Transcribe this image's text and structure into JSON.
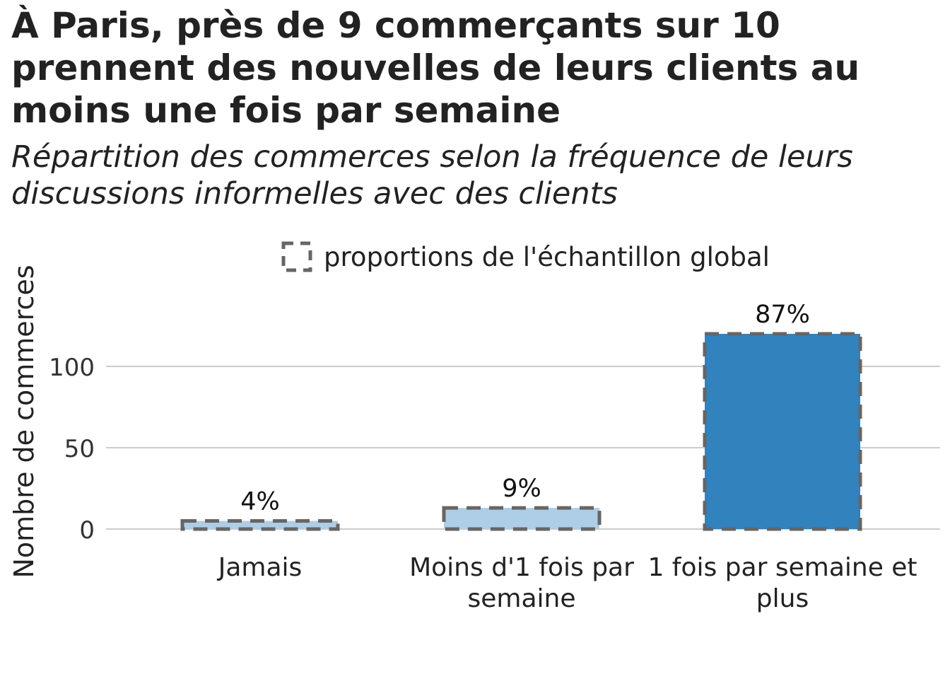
{
  "chart_data": {
    "type": "bar",
    "title": "À Paris, près de 9 commerçants sur 10 prennent des nouvelles de leurs clients au moins une fois par semaine",
    "subtitle": "Répartition des commerces selon la fréquence de leurs discussions informelles avec des clients",
    "ylabel": "Nombre de commerces",
    "xlabel": "",
    "legend": {
      "position": "top",
      "label": "proportions de l'échantillon global"
    },
    "ylim": [
      0,
      125
    ],
    "yticks": [
      0,
      50,
      100
    ],
    "grid": true,
    "categories": [
      [
        "Jamais"
      ],
      [
        "Moins d'1 fois par",
        "semaine"
      ],
      [
        "1 fois par semaine et",
        "plus"
      ]
    ],
    "values": [
      5,
      13,
      120
    ],
    "reference_values": [
      5,
      13,
      120
    ],
    "labels": [
      "4%",
      "9%",
      "87%"
    ],
    "colors": [
      "#aecde6",
      "#aecde6",
      "#3182bd"
    ],
    "reference_outline_color": "#666666"
  }
}
